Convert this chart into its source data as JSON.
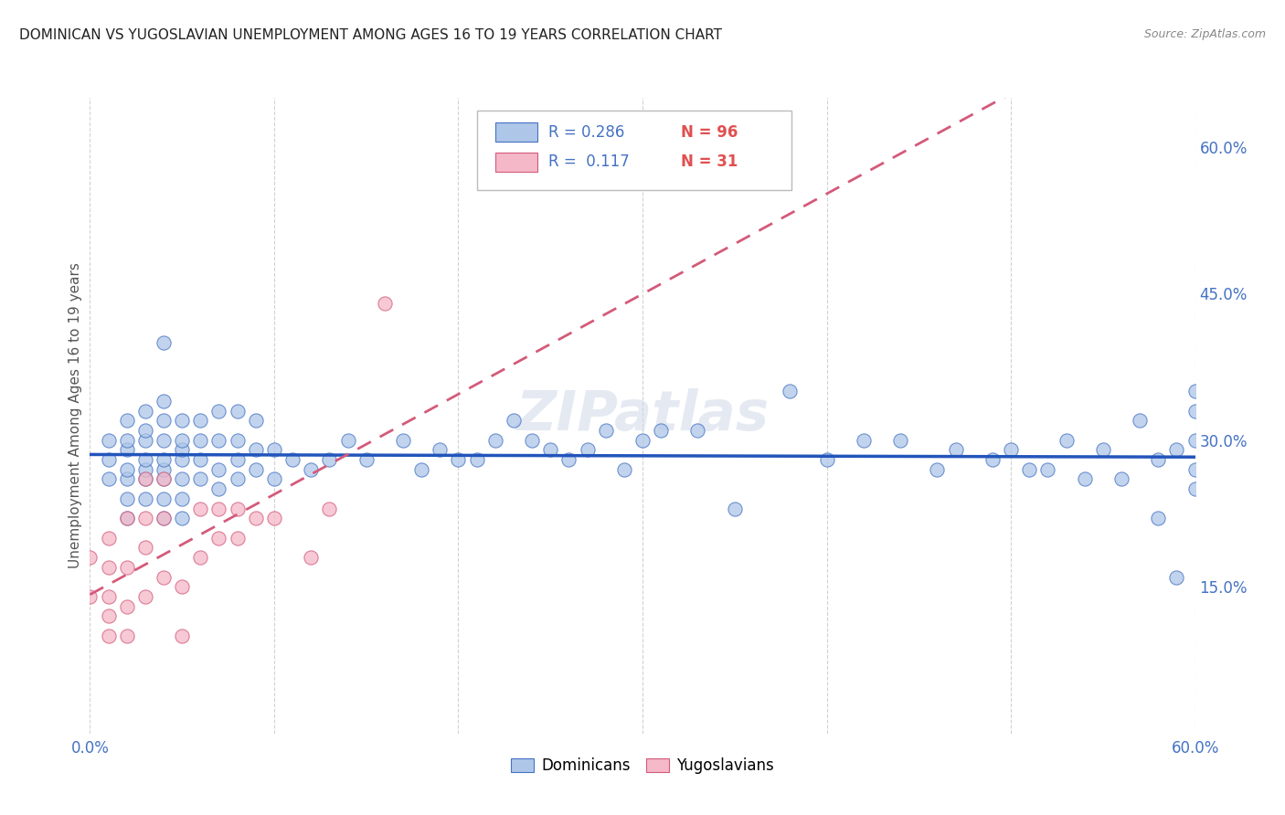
{
  "title": "DOMINICAN VS YUGOSLAVIAN UNEMPLOYMENT AMONG AGES 16 TO 19 YEARS CORRELATION CHART",
  "source": "Source: ZipAtlas.com",
  "ylabel": "Unemployment Among Ages 16 to 19 years",
  "xlim": [
    0.0,
    0.6
  ],
  "ylim": [
    0.0,
    0.65
  ],
  "x_ticks": [
    0.0,
    0.1,
    0.2,
    0.3,
    0.4,
    0.5,
    0.6
  ],
  "x_tick_labels": [
    "0.0%",
    "",
    "",
    "",
    "",
    "",
    "60.0%"
  ],
  "y_ticks_right": [
    0.15,
    0.3,
    0.45,
    0.6
  ],
  "y_tick_labels_right": [
    "15.0%",
    "30.0%",
    "45.0%",
    "60.0%"
  ],
  "dominican_color": "#aec6e8",
  "dominican_edge_color": "#4472c4",
  "yugoslavian_color": "#f4b8c8",
  "yugoslavian_edge_color": "#d45a7a",
  "dominican_line_color": "#2255bb",
  "yugoslavian_line_color": "#d45a7a",
  "dominican_R": "0.286",
  "dominican_N": "96",
  "yugoslavian_R": "0.117",
  "yugoslavian_N": "31",
  "legend_label_1": "Dominicans",
  "legend_label_2": "Yugoslavians",
  "background_color": "#ffffff",
  "grid_color": "#cccccc",
  "watermark": "ZIPatlas",
  "dominican_x": [
    0.01,
    0.01,
    0.01,
    0.02,
    0.02,
    0.02,
    0.02,
    0.02,
    0.02,
    0.02,
    0.03,
    0.03,
    0.03,
    0.03,
    0.03,
    0.03,
    0.03,
    0.04,
    0.04,
    0.04,
    0.04,
    0.04,
    0.04,
    0.04,
    0.04,
    0.04,
    0.05,
    0.05,
    0.05,
    0.05,
    0.05,
    0.05,
    0.05,
    0.06,
    0.06,
    0.06,
    0.06,
    0.07,
    0.07,
    0.07,
    0.07,
    0.08,
    0.08,
    0.08,
    0.08,
    0.09,
    0.09,
    0.09,
    0.1,
    0.1,
    0.11,
    0.12,
    0.13,
    0.14,
    0.15,
    0.17,
    0.18,
    0.19,
    0.2,
    0.21,
    0.22,
    0.23,
    0.24,
    0.25,
    0.26,
    0.27,
    0.28,
    0.29,
    0.3,
    0.31,
    0.33,
    0.35,
    0.38,
    0.4,
    0.42,
    0.44,
    0.46,
    0.47,
    0.49,
    0.5,
    0.51,
    0.52,
    0.53,
    0.54,
    0.55,
    0.56,
    0.57,
    0.58,
    0.58,
    0.59,
    0.59,
    0.6,
    0.6,
    0.6,
    0.6,
    0.6
  ],
  "dominican_y": [
    0.26,
    0.28,
    0.3,
    0.22,
    0.24,
    0.26,
    0.27,
    0.29,
    0.3,
    0.32,
    0.24,
    0.26,
    0.27,
    0.28,
    0.3,
    0.31,
    0.33,
    0.22,
    0.24,
    0.26,
    0.27,
    0.28,
    0.3,
    0.32,
    0.34,
    0.4,
    0.22,
    0.24,
    0.26,
    0.28,
    0.29,
    0.3,
    0.32,
    0.26,
    0.28,
    0.3,
    0.32,
    0.25,
    0.27,
    0.3,
    0.33,
    0.26,
    0.28,
    0.3,
    0.33,
    0.27,
    0.29,
    0.32,
    0.26,
    0.29,
    0.28,
    0.27,
    0.28,
    0.3,
    0.28,
    0.3,
    0.27,
    0.29,
    0.28,
    0.28,
    0.3,
    0.32,
    0.3,
    0.29,
    0.28,
    0.29,
    0.31,
    0.27,
    0.3,
    0.31,
    0.31,
    0.23,
    0.35,
    0.28,
    0.3,
    0.3,
    0.27,
    0.29,
    0.28,
    0.29,
    0.27,
    0.27,
    0.3,
    0.26,
    0.29,
    0.26,
    0.32,
    0.22,
    0.28,
    0.29,
    0.16,
    0.25,
    0.27,
    0.3,
    0.33,
    0.35
  ],
  "yugoslavian_x": [
    0.0,
    0.0,
    0.01,
    0.01,
    0.01,
    0.01,
    0.01,
    0.02,
    0.02,
    0.02,
    0.02,
    0.03,
    0.03,
    0.03,
    0.03,
    0.04,
    0.04,
    0.04,
    0.05,
    0.05,
    0.06,
    0.06,
    0.07,
    0.07,
    0.08,
    0.08,
    0.09,
    0.1,
    0.12,
    0.13,
    0.16
  ],
  "yugoslavian_y": [
    0.14,
    0.18,
    0.1,
    0.12,
    0.14,
    0.17,
    0.2,
    0.1,
    0.13,
    0.17,
    0.22,
    0.14,
    0.19,
    0.22,
    0.26,
    0.16,
    0.22,
    0.26,
    0.1,
    0.15,
    0.18,
    0.23,
    0.2,
    0.23,
    0.2,
    0.23,
    0.22,
    0.22,
    0.18,
    0.23,
    0.44
  ]
}
